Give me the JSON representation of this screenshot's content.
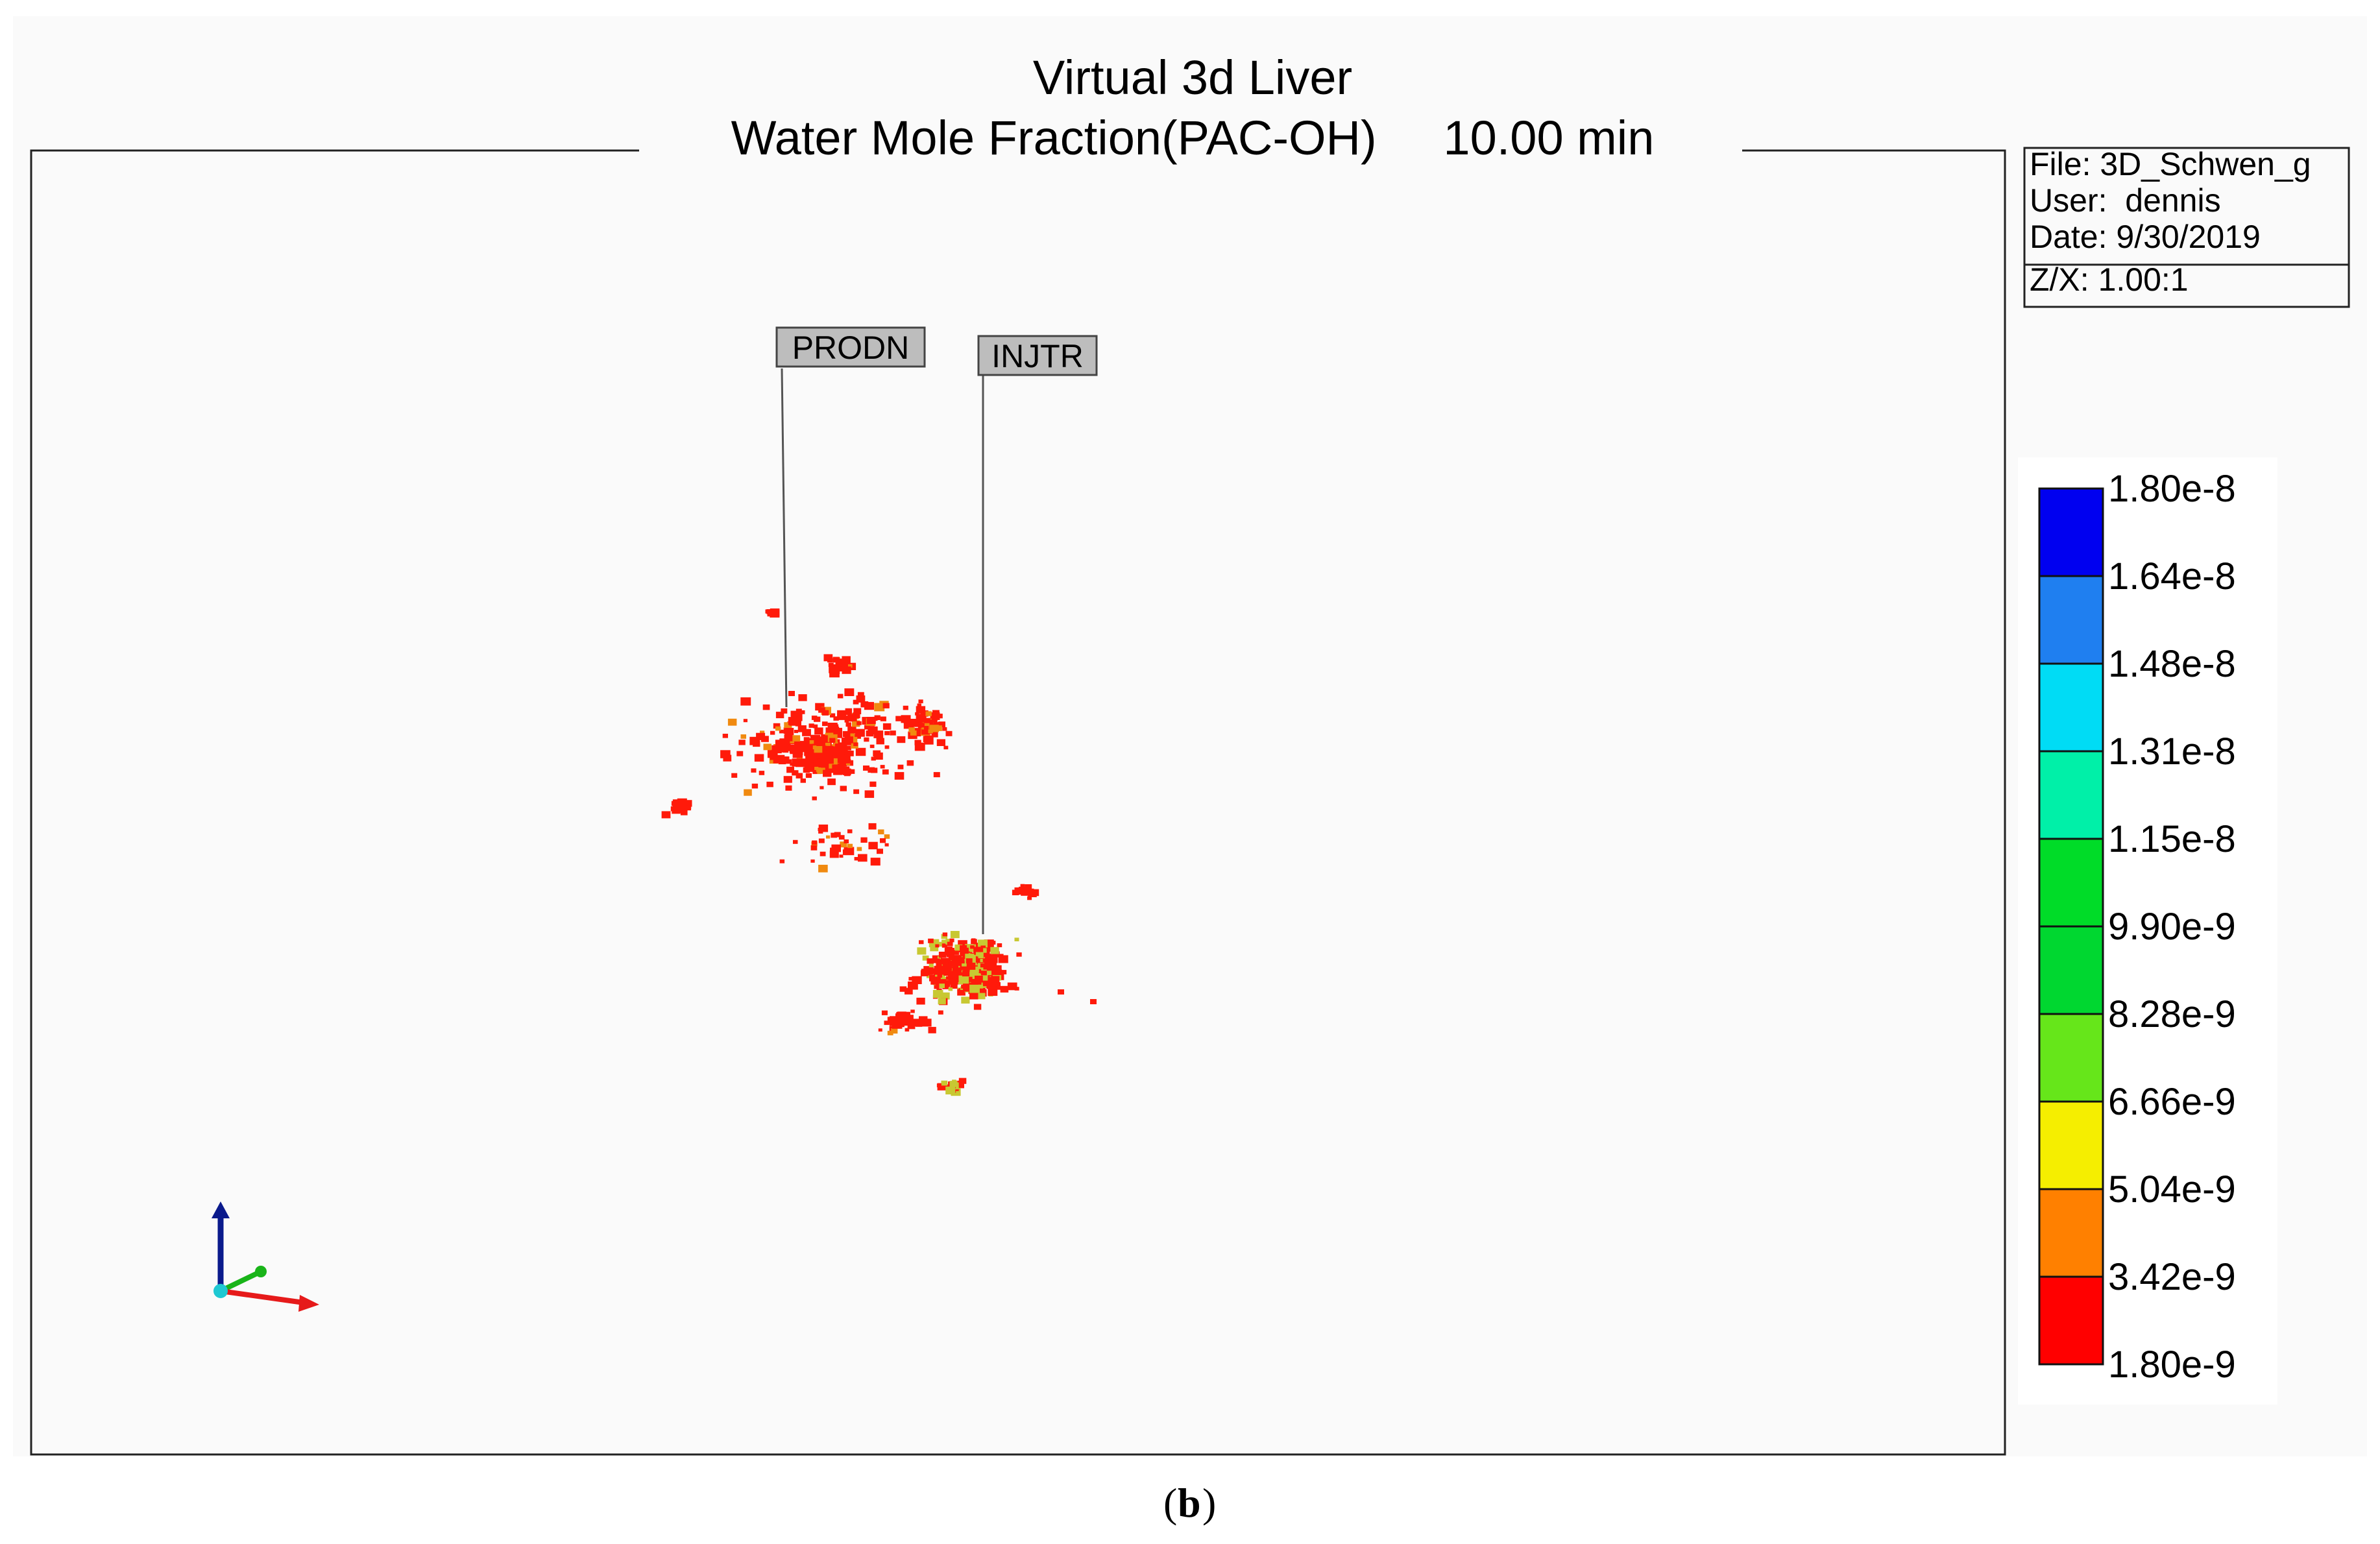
{
  "title": {
    "line1": "Virtual 3d Liver",
    "line2": "Water Mole Fraction(PAC-OH)     10.00 min"
  },
  "info_box": {
    "file": "File: 3D_Schwen_g",
    "user": "User:  dennis",
    "date": "Date: 9/30/2019",
    "zx": "Z/X: 1.00:1"
  },
  "wells": [
    {
      "name": "PRODN"
    },
    {
      "name": "INJTR"
    }
  ],
  "legend": {
    "labels": [
      "1.80e-8",
      "1.64e-8",
      "1.48e-8",
      "1.31e-8",
      "1.15e-8",
      "9.90e-9",
      "8.28e-9",
      "6.66e-9",
      "5.04e-9",
      "3.42e-9",
      "1.80e-9"
    ],
    "colors": [
      "#0000f0",
      "#1f7ff0",
      "#00dcf5",
      "#00f0a8",
      "#00dc28",
      "#00d730",
      "#66e61a",
      "#f5ee00",
      "#ff8000",
      "#ff0000"
    ]
  },
  "axis_triad": {
    "z_color": "#0a1a8c",
    "y_color": "#19b419",
    "x_color": "#e61a1a",
    "origin_color": "#1ec8d2"
  },
  "scatter_colors": {
    "main": "#ff1a0a",
    "accent_orange": "#f08a10",
    "accent_yellow": "#c8c832"
  },
  "caption": {
    "open": "(",
    "letter": "b",
    "close": ")"
  }
}
